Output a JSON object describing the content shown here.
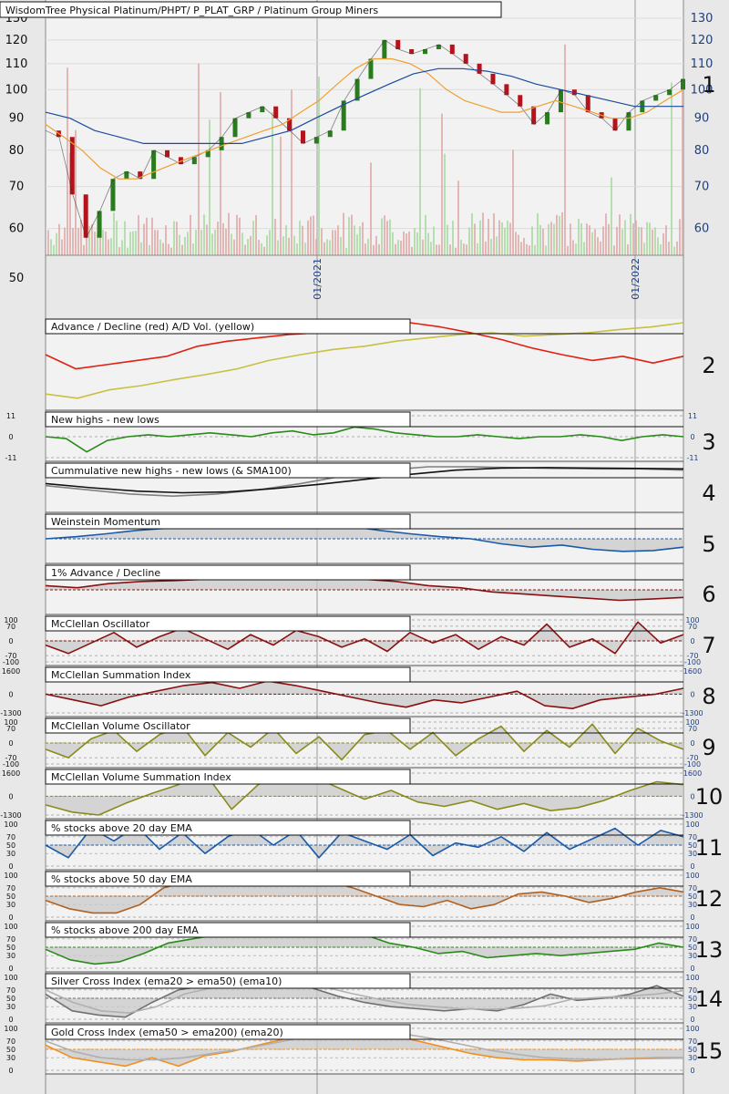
{
  "colors": {
    "background": "#e8e8e8",
    "price_up": "#2a7a1e",
    "price_down": "#b5121b",
    "ma_fast": "#f0a030",
    "ma_mid": "#8a3a1a",
    "ma_slow": "#1a4aa0",
    "red": "#e02010",
    "yellow": "#c8c040",
    "green": "#2a8a1a",
    "blue": "#1a5aa8",
    "darkred": "#8a1010",
    "olive": "#8a8a1a",
    "brown": "#b06020",
    "gray": "#808080",
    "orange": "#f09020"
  },
  "chart_data": [
    {
      "type": "line",
      "panel": 1,
      "title": "WisdomTree Physical Platinum/PHPT/ P_PLAT_GRP / Platinum Group Miners",
      "y_ticks": [
        "130",
        "120",
        "110",
        "100",
        "90",
        "80",
        "70",
        "60",
        "50"
      ],
      "y_tick_values": [
        130,
        120,
        110,
        100,
        90,
        80,
        70,
        60,
        50
      ],
      "scale": "log",
      "x_labels": [
        "01/2021",
        "01/2022"
      ],
      "series": [
        {
          "values": [
            86,
            84,
            68,
            58,
            64,
            72,
            74,
            72,
            80,
            78,
            76,
            78,
            80,
            84,
            90,
            92,
            94,
            90,
            86,
            82,
            84,
            86,
            96,
            104,
            112,
            120,
            116,
            114,
            116,
            118,
            114,
            110,
            106,
            102,
            98,
            94,
            88,
            92,
            100,
            98,
            92,
            90,
            86,
            92,
            96,
            98,
            100,
            104
          ]
        },
        {
          "values": [
            88,
            84,
            80,
            75,
            72,
            72,
            74,
            76,
            78,
            80,
            82,
            84,
            86,
            88,
            92,
            96,
            102,
            108,
            112,
            112,
            110,
            106,
            100,
            96,
            94,
            92,
            92,
            94,
            96,
            94,
            92,
            90,
            90,
            92,
            96,
            100
          ]
        },
        {
          "values": [
            92,
            90,
            86,
            84,
            82,
            82,
            82,
            82,
            82,
            84,
            86,
            90,
            94,
            98,
            102,
            106,
            108,
            108,
            107,
            105,
            102,
            100,
            98,
            96,
            94,
            94,
            94
          ]
        }
      ]
    },
    {
      "type": "line",
      "panel": 2,
      "title": "Advance / Decline (red) A/D Vol. (yellow)",
      "y_ticks": [],
      "series": [
        {
          "values": [
            0.62,
            0.45,
            0.5,
            0.55,
            0.6,
            0.72,
            0.78,
            0.82,
            0.86,
            0.88,
            0.92,
            0.95,
            1.0,
            0.95,
            0.88,
            0.8,
            0.7,
            0.62,
            0.55,
            0.6,
            0.52,
            0.6
          ]
        },
        {
          "values": [
            0.15,
            0.1,
            0.2,
            0.25,
            0.32,
            0.38,
            0.45,
            0.55,
            0.62,
            0.68,
            0.72,
            0.78,
            0.82,
            0.86,
            0.88,
            0.84,
            0.86,
            0.88,
            0.92,
            0.95,
            1.0
          ]
        }
      ]
    },
    {
      "type": "line",
      "panel": 3,
      "title": "New highs - new lows",
      "y_ticks": [
        "11",
        "0",
        "-11"
      ],
      "y_tick_values": [
        11,
        0,
        -11
      ],
      "series": [
        {
          "values": [
            0,
            -1,
            -8,
            -2,
            0,
            1,
            0,
            1,
            2,
            1,
            0,
            2,
            3,
            1,
            2,
            5,
            4,
            2,
            1,
            0,
            0,
            1,
            0,
            -1,
            0,
            0,
            1,
            0,
            -2,
            0,
            1,
            0
          ]
        }
      ]
    },
    {
      "type": "line",
      "panel": 4,
      "title": "Cummulative new highs - new lows (& SMA100)",
      "y_ticks": [],
      "series": [
        {
          "values": [
            0.55,
            0.45,
            0.35,
            0.3,
            0.35,
            0.45,
            0.6,
            0.78,
            0.92,
            1.0,
            1.0,
            0.98,
            0.96,
            0.95,
            0.95,
            0.92
          ]
        },
        {
          "values": [
            0.6,
            0.5,
            0.42,
            0.38,
            0.4,
            0.48,
            0.58,
            0.7,
            0.82,
            0.92,
            0.97,
            0.98,
            0.97,
            0.96,
            0.95
          ]
        }
      ]
    },
    {
      "type": "line",
      "panel": 5,
      "title": "Weinstein Momentum",
      "y_ticks": [],
      "series": [
        {
          "values": [
            0.5,
            0.55,
            0.62,
            0.7,
            0.75,
            0.82,
            0.85,
            0.9,
            0.92,
            0.85,
            0.8,
            0.7,
            0.62,
            0.55,
            0.5,
            0.38,
            0.3,
            0.35,
            0.25,
            0.2,
            0.22,
            0.3
          ]
        }
      ]
    },
    {
      "type": "line",
      "panel": 6,
      "title": "1% Advance / Decline",
      "y_ticks": [],
      "series": [
        {
          "values": [
            0.6,
            0.55,
            0.65,
            0.7,
            0.72,
            0.75,
            0.8,
            0.78,
            0.85,
            0.82,
            0.75,
            0.7,
            0.6,
            0.55,
            0.45,
            0.4,
            0.35,
            0.3,
            0.25,
            0.28,
            0.32
          ]
        }
      ]
    },
    {
      "type": "line",
      "panel": 7,
      "title": "McClellan Oscillator",
      "y_ticks": [
        "100",
        "70",
        "0",
        "-70",
        "-100"
      ],
      "y_tick_values": [
        100,
        70,
        0,
        -70,
        -100
      ],
      "series": [
        {
          "values": [
            -20,
            -60,
            -10,
            40,
            -30,
            20,
            60,
            10,
            -40,
            30,
            -20,
            50,
            20,
            -30,
            10,
            -50,
            40,
            -10,
            30,
            -40,
            20,
            -20,
            80,
            -30,
            10,
            -60,
            90,
            -10,
            30
          ]
        }
      ]
    },
    {
      "type": "line",
      "panel": 8,
      "title": "McClellan Summation Index",
      "y_ticks": [
        "1600",
        "0",
        "-1300"
      ],
      "y_tick_values": [
        1600,
        0,
        -1300
      ],
      "series": [
        {
          "values": [
            0,
            -400,
            -800,
            -200,
            200,
            600,
            800,
            400,
            900,
            600,
            200,
            -200,
            -600,
            -900,
            -400,
            -600,
            -200,
            200,
            -800,
            -1000,
            -400,
            -200,
            0,
            400
          ]
        }
      ]
    },
    {
      "type": "line",
      "panel": 9,
      "title": "McClellan Volume Oscillator",
      "y_ticks": [
        "100",
        "70",
        "0",
        "-70",
        "-100"
      ],
      "y_tick_values": [
        100,
        70,
        0,
        -70,
        -100
      ],
      "series": [
        {
          "values": [
            -30,
            -70,
            20,
            60,
            -40,
            40,
            80,
            -60,
            50,
            -20,
            70,
            -50,
            30,
            -80,
            40,
            60,
            -30,
            50,
            -60,
            20,
            80,
            -40,
            60,
            -20,
            90,
            -50,
            70,
            10,
            -30
          ]
        }
      ]
    },
    {
      "type": "line",
      "panel": 10,
      "title": "McClellan Volume Summation Index",
      "y_ticks": [
        "1600",
        "0",
        "-1300"
      ],
      "y_tick_values": [
        1600,
        0,
        -1300
      ],
      "series": [
        {
          "values": [
            -600,
            -1100,
            -1300,
            -500,
            200,
            800,
            1600,
            -900,
            800,
            1600,
            1400,
            600,
            -200,
            400,
            -400,
            -700,
            -300,
            -900,
            -500,
            -1000,
            -800,
            -300,
            400,
            1000,
            800
          ]
        }
      ]
    },
    {
      "type": "line",
      "panel": 11,
      "title": "% stocks above 20 day EMA",
      "y_ticks": [
        "100",
        "70",
        "50",
        "30",
        "0"
      ],
      "y_tick_values": [
        100,
        70,
        50,
        30,
        0
      ],
      "series": [
        {
          "values": [
            50,
            20,
            90,
            60,
            95,
            40,
            80,
            30,
            70,
            90,
            50,
            85,
            20,
            80,
            60,
            40,
            75,
            25,
            55,
            45,
            70,
            35,
            80,
            40,
            65,
            90,
            50,
            85,
            70
          ]
        }
      ]
    },
    {
      "type": "line",
      "panel": 12,
      "title": "% stocks above 50 day EMA",
      "y_ticks": [
        "100",
        "70",
        "50",
        "30",
        "0"
      ],
      "y_tick_values": [
        100,
        70,
        50,
        30,
        0
      ],
      "series": [
        {
          "values": [
            40,
            20,
            10,
            10,
            30,
            70,
            85,
            75,
            90,
            95,
            80,
            90,
            85,
            70,
            50,
            30,
            25,
            40,
            20,
            30,
            55,
            60,
            50,
            35,
            45,
            60,
            70,
            60
          ]
        }
      ]
    },
    {
      "type": "line",
      "panel": 13,
      "title": "% stocks above 200 day EMA",
      "y_ticks": [
        "100",
        "70",
        "50",
        "30",
        "0"
      ],
      "y_tick_values": [
        100,
        70,
        50,
        30,
        0
      ],
      "series": [
        {
          "values": [
            45,
            20,
            10,
            15,
            35,
            60,
            70,
            80,
            85,
            95,
            95,
            90,
            90,
            80,
            60,
            50,
            35,
            40,
            25,
            30,
            35,
            30,
            35,
            40,
            45,
            60,
            50
          ]
        }
      ]
    },
    {
      "type": "line",
      "panel": 14,
      "title": "Silver Cross Index (ema20 > ema50) (ema10)",
      "y_ticks": [
        "100",
        "70",
        "50",
        "30",
        "0"
      ],
      "y_tick_values": [
        100,
        70,
        50,
        30,
        0
      ],
      "series": [
        {
          "values": [
            60,
            20,
            10,
            5,
            40,
            70,
            80,
            85,
            90,
            85,
            75,
            55,
            40,
            30,
            25,
            20,
            25,
            20,
            35,
            60,
            45,
            50,
            60,
            80,
            55
          ]
        },
        {
          "values": [
            70,
            40,
            20,
            15,
            30,
            60,
            75,
            82,
            86,
            84,
            78,
            62,
            48,
            36,
            30,
            25,
            24,
            26,
            32,
            48,
            52,
            55,
            60,
            68
          ]
        }
      ]
    },
    {
      "type": "line",
      "panel": 15,
      "title": "Gold Cross Index (ema50 > ema200) (ema20)",
      "y_ticks": [
        "100",
        "70",
        "50",
        "30",
        "0"
      ],
      "y_tick_values": [
        100,
        70,
        50,
        30,
        0
      ],
      "series": [
        {
          "values": [
            60,
            30,
            20,
            10,
            30,
            10,
            35,
            45,
            60,
            75,
            90,
            95,
            95,
            85,
            70,
            55,
            40,
            30,
            25,
            25,
            22,
            25,
            28,
            30,
            30
          ]
        },
        {
          "values": [
            70,
            45,
            30,
            25,
            25,
            30,
            40,
            50,
            62,
            75,
            86,
            92,
            92,
            86,
            75,
            62,
            48,
            38,
            30,
            27,
            26,
            27,
            28,
            29
          ]
        }
      ]
    }
  ],
  "panel_numbers": [
    "1",
    "2",
    "3",
    "4",
    "5",
    "6",
    "7",
    "8",
    "9",
    "10",
    "11",
    "12",
    "13",
    "14",
    "15"
  ]
}
